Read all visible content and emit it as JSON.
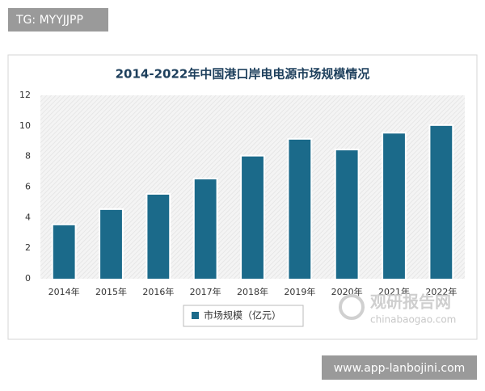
{
  "top_badge": "TG: MYYJJPP",
  "bottom_badge": "www.app-lanbojini.com",
  "watermark": {
    "name": "观研报告网",
    "site": "chinabaogao.com"
  },
  "chart_data": {
    "type": "bar",
    "title": "2014-2022年中国港口岸电电源市场规模情况",
    "categories": [
      "2014年",
      "2015年",
      "2016年",
      "2017年",
      "2018年",
      "2019年",
      "2020年",
      "2021年",
      "2022年"
    ],
    "series": [
      {
        "name": "市场规模（亿元）",
        "color": "#1b6a8a",
        "values": [
          3.5,
          4.5,
          5.5,
          6.5,
          8.0,
          9.1,
          8.4,
          9.5,
          10.0
        ]
      }
    ],
    "ylim": [
      0,
      12
    ],
    "yticks": [
      0,
      2,
      4,
      6,
      8,
      10,
      12
    ],
    "grid": false
  }
}
